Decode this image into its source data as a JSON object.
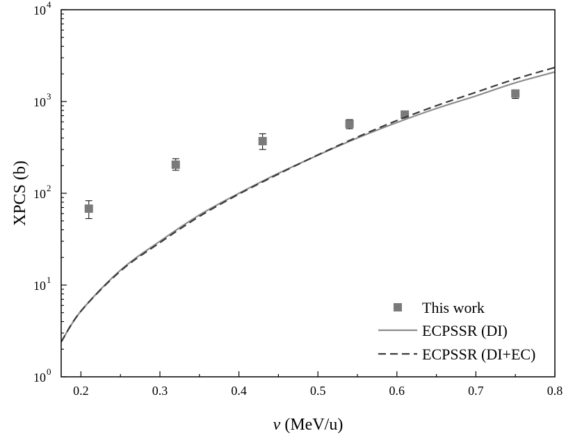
{
  "chart_data": {
    "type": "scatter",
    "xlabel_italic": "v",
    "xlabel_rest": " (MeV/u)",
    "ylabel": "XPCS (b)",
    "yscale": "log",
    "xlim": [
      0.175,
      0.8
    ],
    "ylim": [
      1,
      10000
    ],
    "x_ticks": [
      "0.2",
      "0.3",
      "0.4",
      "0.5",
      "0.6",
      "0.7",
      "0.8"
    ],
    "x_tick_values": [
      0.2,
      0.3,
      0.4,
      0.5,
      0.6,
      0.7,
      0.8
    ],
    "y_ticks": [
      {
        "base": "10",
        "exp": "0",
        "value": 1
      },
      {
        "base": "10",
        "exp": "1",
        "value": 10
      },
      {
        "base": "10",
        "exp": "2",
        "value": 100
      },
      {
        "base": "10",
        "exp": "3",
        "value": 1000
      },
      {
        "base": "10",
        "exp": "4",
        "value": 10000
      }
    ],
    "legend_position": "bottom-right",
    "grid": false,
    "series": [
      {
        "name": "This work",
        "kind": "points",
        "color": "#7a7a7a",
        "x": [
          0.21,
          0.32,
          0.43,
          0.54,
          0.61,
          0.75
        ],
        "y": [
          68,
          205,
          370,
          570,
          720,
          1220
        ],
        "err_low": [
          53,
          178,
          300,
          505,
          670,
          1080
        ],
        "err_high": [
          83,
          238,
          445,
          635,
          775,
          1340
        ]
      },
      {
        "name": "ECPSSR (DI)",
        "kind": "line",
        "style": "solid",
        "color": "#8c8c8c",
        "x": [
          0.175,
          0.2,
          0.25,
          0.3,
          0.35,
          0.4,
          0.45,
          0.5,
          0.55,
          0.6,
          0.65,
          0.7,
          0.75,
          0.8
        ],
        "y": [
          2.4,
          5.2,
          14.5,
          30,
          58,
          100,
          165,
          260,
          400,
          590,
          840,
          1150,
          1600,
          2100
        ]
      },
      {
        "name": "ECPSSR (DI+EC)",
        "kind": "line",
        "style": "dashed",
        "color": "#3a3a3a",
        "x": [
          0.175,
          0.2,
          0.25,
          0.3,
          0.35,
          0.4,
          0.45,
          0.5,
          0.55,
          0.6,
          0.65,
          0.7,
          0.75,
          0.8
        ],
        "y": [
          2.4,
          5.2,
          14.2,
          29,
          56,
          98,
          162,
          262,
          410,
          620,
          900,
          1260,
          1760,
          2350
        ]
      }
    ]
  }
}
